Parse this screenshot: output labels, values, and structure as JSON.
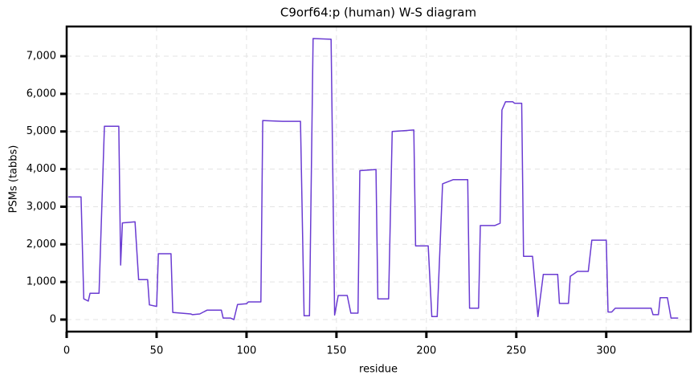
{
  "chart_data": {
    "type": "line",
    "title": "C9orf64:p (human) W-S diagram",
    "x_label": "residue",
    "y_label": "PSMs (tabbs)",
    "color": "#6a3bd2",
    "grid": true,
    "x": [
      1,
      8,
      9.5,
      12,
      13,
      18,
      21,
      29,
      30,
      31,
      38,
      40,
      45,
      46,
      50,
      51,
      58,
      59,
      69,
      70,
      74,
      78,
      86,
      87,
      91,
      93,
      95,
      100,
      101,
      108,
      109,
      120,
      130,
      132,
      135,
      137,
      147,
      149,
      151,
      156,
      158,
      162,
      163,
      172,
      173,
      179,
      181,
      193,
      194,
      201,
      203,
      206,
      209,
      215,
      223,
      224,
      229,
      230,
      238,
      241,
      242,
      244,
      248,
      249,
      253,
      254,
      259,
      262,
      265,
      273,
      274,
      279,
      280,
      284,
      290,
      292,
      300,
      301,
      303,
      305,
      325,
      326,
      329,
      330,
      334,
      336,
      340
    ],
    "values": [
      3260,
      3260,
      550,
      490,
      700,
      700,
      5140,
      5140,
      1450,
      2570,
      2600,
      1060,
      1060,
      390,
      350,
      1750,
      1750,
      190,
      150,
      130,
      150,
      250,
      250,
      40,
      40,
      0,
      400,
      420,
      470,
      470,
      5290,
      5270,
      5270,
      100,
      100,
      7470,
      7450,
      120,
      640,
      640,
      170,
      170,
      3960,
      3990,
      550,
      550,
      5000,
      5040,
      1960,
      1960,
      80,
      80,
      3610,
      3720,
      3720,
      300,
      300,
      2500,
      2500,
      2560,
      5570,
      5790,
      5790,
      5750,
      5750,
      1680,
      1680,
      80,
      1200,
      1200,
      430,
      430,
      1150,
      1280,
      1280,
      2110,
      2110,
      200,
      200,
      300,
      300,
      130,
      130,
      580,
      580,
      40,
      40
    ],
    "xlim": [
      0,
      347
    ],
    "ylim": [
      -320,
      7790
    ],
    "xticks": [
      0,
      50,
      100,
      150,
      200,
      250,
      300
    ],
    "yticks": [
      0,
      {
        "value": 1000,
        "label": "1,000"
      },
      {
        "value": 2000,
        "label": "2,000"
      },
      {
        "value": 3000,
        "label": "3,000"
      },
      {
        "value": 4000,
        "label": "4,000"
      },
      {
        "value": 5000,
        "label": "5,000"
      },
      {
        "value": 6000,
        "label": "6,000"
      },
      {
        "value": 7000,
        "label": "7,000"
      }
    ]
  }
}
